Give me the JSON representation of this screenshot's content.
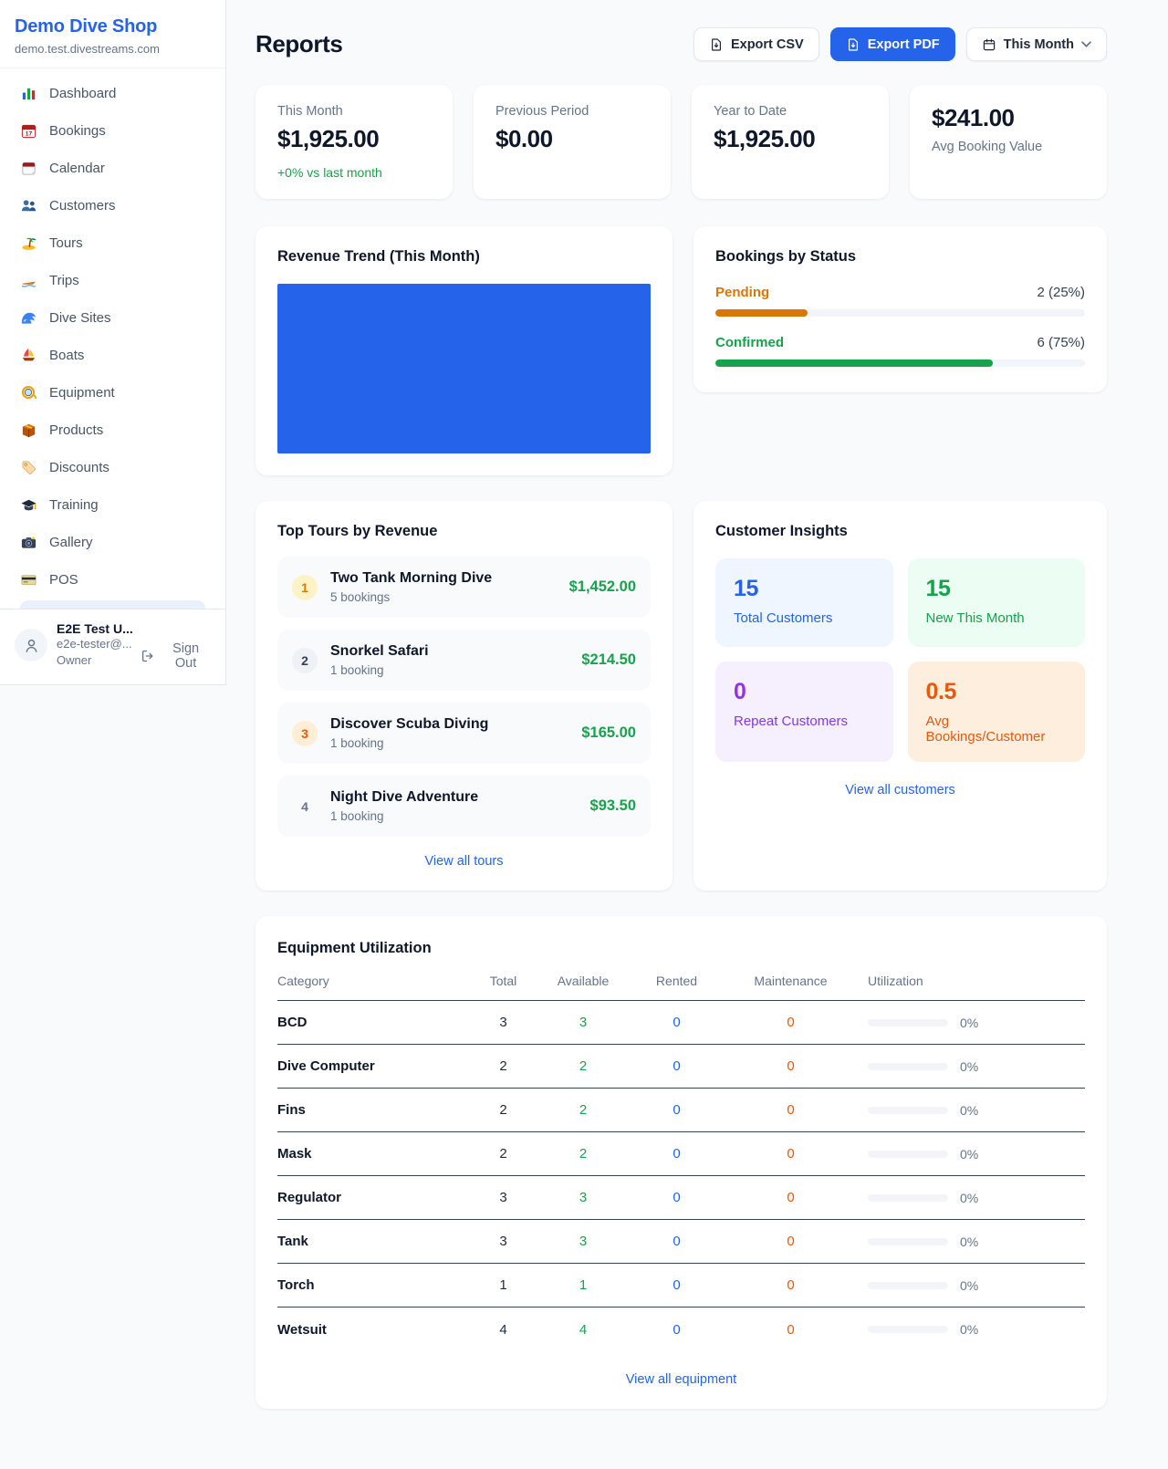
{
  "sidebar": {
    "brand": "Demo Dive Shop",
    "subdomain": "demo.test.divestreams.com",
    "items": [
      {
        "id": "dashboard",
        "icon": "bar-chart-icon",
        "label": "Dashboard"
      },
      {
        "id": "bookings",
        "icon": "calendar-date-icon",
        "label": "Bookings"
      },
      {
        "id": "calendar",
        "icon": "calendar-pad-icon",
        "label": "Calendar"
      },
      {
        "id": "customers",
        "icon": "people-icon",
        "label": "Customers"
      },
      {
        "id": "tours",
        "icon": "island-icon",
        "label": "Tours"
      },
      {
        "id": "trips",
        "icon": "speedboat-icon",
        "label": "Trips"
      },
      {
        "id": "dive-sites",
        "icon": "wave-icon",
        "label": "Dive Sites"
      },
      {
        "id": "boats",
        "icon": "sailboat-icon",
        "label": "Boats"
      },
      {
        "id": "equipment",
        "icon": "dive-mask-icon",
        "label": "Equipment"
      },
      {
        "id": "products",
        "icon": "package-icon",
        "label": "Products"
      },
      {
        "id": "discounts",
        "icon": "tag-icon",
        "label": "Discounts"
      },
      {
        "id": "training",
        "icon": "graduation-cap-icon",
        "label": "Training"
      },
      {
        "id": "gallery",
        "icon": "camera-icon",
        "label": "Gallery"
      },
      {
        "id": "pos",
        "icon": "credit-card-icon",
        "label": "POS"
      }
    ],
    "user": {
      "name": "E2E Test U...",
      "email": "e2e-tester@...",
      "role": "Owner",
      "sign_out": "Sign Out"
    }
  },
  "header": {
    "title": "Reports",
    "export_csv": "Export CSV",
    "export_pdf": "Export PDF",
    "period": "This Month"
  },
  "stats": [
    {
      "label": "This Month",
      "value": "$1,925.00",
      "delta": "+0% vs last month"
    },
    {
      "label": "Previous Period",
      "value": "$0.00"
    },
    {
      "label": "Year to Date",
      "value": "$1,925.00"
    },
    {
      "label": "Avg Booking Value",
      "value": "$241.00",
      "value_first": true
    }
  ],
  "revenue_trend": {
    "title": "Revenue Trend (This Month)",
    "bar_color": "#2563eb"
  },
  "bookings_by_status": {
    "title": "Bookings by Status",
    "rows": [
      {
        "label": "Pending",
        "count": 2,
        "percent": 25,
        "display": "2 (25%)",
        "color": "#d97706"
      },
      {
        "label": "Confirmed",
        "count": 6,
        "percent": 75,
        "display": "6 (75%)",
        "color": "#16a34a"
      }
    ]
  },
  "top_tours": {
    "title": "Top Tours by Revenue",
    "view_all": "View all tours",
    "items": [
      {
        "rank": 1,
        "name": "Two Tank Morning Dive",
        "bookings": "5 bookings",
        "revenue": "$1,452.00"
      },
      {
        "rank": 2,
        "name": "Snorkel Safari",
        "bookings": "1 booking",
        "revenue": "$214.50"
      },
      {
        "rank": 3,
        "name": "Discover Scuba Diving",
        "bookings": "1 booking",
        "revenue": "$165.00"
      },
      {
        "rank": 4,
        "name": "Night Dive Adventure",
        "bookings": "1 booking",
        "revenue": "$93.50"
      }
    ]
  },
  "customer_insights": {
    "title": "Customer Insights",
    "view_all": "View all customers",
    "tiles": [
      {
        "value": "15",
        "label": "Total Customers",
        "theme": "blue"
      },
      {
        "value": "15",
        "label": "New This Month",
        "theme": "green"
      },
      {
        "value": "0",
        "label": "Repeat Customers",
        "theme": "purple"
      },
      {
        "value": "0.5",
        "label": "Avg Bookings/Customer",
        "theme": "orange"
      }
    ]
  },
  "equipment_utilization": {
    "title": "Equipment Utilization",
    "view_all": "View all equipment",
    "columns": [
      "Category",
      "Total",
      "Available",
      "Rented",
      "Maintenance",
      "Utilization"
    ],
    "rows": [
      {
        "category": "BCD",
        "total": 3,
        "available": 3,
        "rented": 0,
        "maintenance": 0,
        "utilization": "0%",
        "utilization_pct": 0
      },
      {
        "category": "Dive Computer",
        "total": 2,
        "available": 2,
        "rented": 0,
        "maintenance": 0,
        "utilization": "0%",
        "utilization_pct": 0
      },
      {
        "category": "Fins",
        "total": 2,
        "available": 2,
        "rented": 0,
        "maintenance": 0,
        "utilization": "0%",
        "utilization_pct": 0
      },
      {
        "category": "Mask",
        "total": 2,
        "available": 2,
        "rented": 0,
        "maintenance": 0,
        "utilization": "0%",
        "utilization_pct": 0
      },
      {
        "category": "Regulator",
        "total": 3,
        "available": 3,
        "rented": 0,
        "maintenance": 0,
        "utilization": "0%",
        "utilization_pct": 0
      },
      {
        "category": "Tank",
        "total": 3,
        "available": 3,
        "rented": 0,
        "maintenance": 0,
        "utilization": "0%",
        "utilization_pct": 0
      },
      {
        "category": "Torch",
        "total": 1,
        "available": 1,
        "rented": 0,
        "maintenance": 0,
        "utilization": "0%",
        "utilization_pct": 0
      },
      {
        "category": "Wetsuit",
        "total": 4,
        "available": 4,
        "rented": 0,
        "maintenance": 0,
        "utilization": "0%",
        "utilization_pct": 0
      }
    ]
  },
  "colors": {
    "primary": "#2563eb",
    "success": "#16a34a",
    "pending_orange": "#d97706",
    "maintenance_orange": "#ea580c",
    "purple": "#9333ea",
    "background": "#f8fafc"
  }
}
